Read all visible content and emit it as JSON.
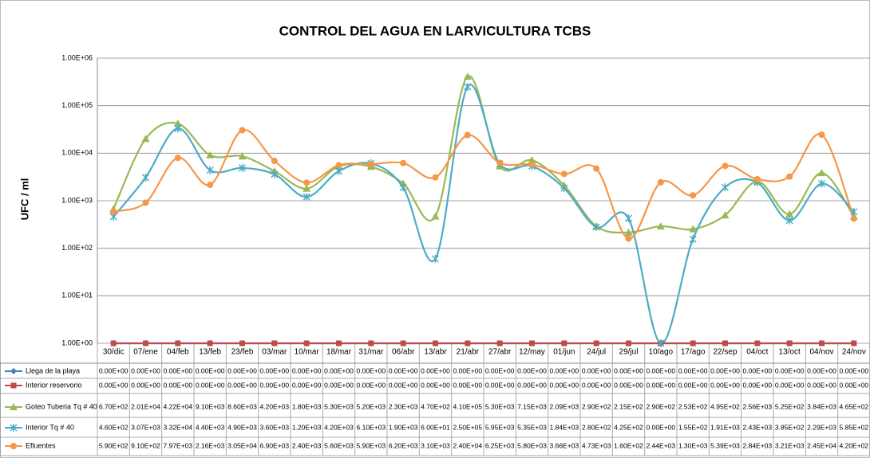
{
  "chart_data": {
    "type": "line",
    "title": "CONTROL DEL AGUA EN LARVICULTURA TCBS",
    "y_label": "UFC / ml",
    "log_scale": true,
    "grid": true,
    "legend": "table",
    "categories": [
      "30/dic",
      "07/ene",
      "04/feb",
      "13/feb",
      "23/feb",
      "03/mar",
      "10/mar",
      "18/mar",
      "31/mar",
      "06/abr",
      "13/abr",
      "21/abr",
      "27/abr",
      "12/may",
      "01/jun",
      "24/jul",
      "29/jul",
      "10/ago",
      "17/ago",
      "22/sep",
      "04/oct",
      "13/oct",
      "04/nov",
      "24/nov"
    ],
    "ylim": [
      1,
      1000000
    ],
    "yticks": [
      {
        "value": 1,
        "label": "1.00E+00"
      },
      {
        "value": 10,
        "label": "1.00E+01"
      },
      {
        "value": 100,
        "label": "1.00E+02"
      },
      {
        "value": 1000,
        "label": "1.00E+03"
      },
      {
        "value": 10000,
        "label": "1.00E+04"
      },
      {
        "value": 100000,
        "label": "1.00E+05"
      },
      {
        "value": 1000000,
        "label": "1.00E+06"
      }
    ],
    "series": [
      {
        "name": "Llega de la playa",
        "color": "#4a7ebb",
        "marker": "diamond",
        "values": [
          0,
          0,
          0,
          0,
          0,
          0,
          0,
          0,
          0,
          0,
          0,
          0,
          0,
          0,
          0,
          0,
          0,
          0,
          0,
          0,
          0,
          0,
          0,
          0
        ],
        "value_labels": [
          "0.00E+00",
          "0.00E+00",
          "0.00E+00",
          "0.00E+00",
          "0.00E+00",
          "0.00E+00",
          "0.00E+00",
          "0.00E+00",
          "0.00E+00",
          "0.00E+00",
          "0.00E+00",
          "0.00E+00",
          "0.00E+00",
          "0.00E+00",
          "0.00E+00",
          "0.00E+00",
          "0.00E+00",
          "0.00E+00",
          "0.00E+00",
          "0.00E+00",
          "0.00E+00",
          "0.00E+00",
          "0.00E+00",
          "0.00E+00"
        ]
      },
      {
        "name": "Interior reservorio",
        "color": "#be4b48",
        "marker": "square",
        "values": [
          0,
          0,
          0,
          0,
          0,
          0,
          0,
          0,
          0,
          0,
          0,
          0,
          0,
          0,
          0,
          0,
          0,
          0,
          0,
          0,
          0,
          0,
          0,
          0
        ],
        "value_labels": [
          "0.00E+00",
          "0.00E+00",
          "0.00E+00",
          "0.00E+00",
          "0.00E+00",
          "0.00E+00",
          "0.00E+00",
          "0.00E+00",
          "0.00E+00",
          "0.00E+00",
          "0.00E+00",
          "0.00E+00",
          "0.00E+00",
          "0.00E+00",
          "0.00E+00",
          "0.00E+00",
          "0.00E+00",
          "0.00E+00",
          "0.00E+00",
          "0.00E+00",
          "0.00E+00",
          "0.00E+00",
          "0.00E+00",
          "0.00E+00"
        ]
      },
      {
        "name": "Goteo Tuberia Tq # 40",
        "color": "#98b954",
        "marker": "triangle",
        "values": [
          670,
          20100,
          42200,
          9100,
          8600,
          4200,
          1800,
          5300,
          5200,
          2300,
          470,
          410000,
          5300,
          7150,
          2090,
          290,
          215,
          290,
          253,
          495,
          2560,
          525,
          3840,
          465
        ],
        "value_labels": [
          "6.70E+02",
          "2.01E+04",
          "4.22E+04",
          "9.10E+03",
          "8.60E+03",
          "4.20E+03",
          "1.80E+03",
          "5.30E+03",
          "5.20E+03",
          "2.30E+03",
          "4.70E+02",
          "4.10E+05",
          "5.30E+03",
          "7.15E+03",
          "2.09E+03",
          "2.90E+02",
          "2.15E+02",
          "2.90E+02",
          "2.53E+02",
          "4.95E+02",
          "2.56E+03",
          "5.25E+02",
          "3.84E+03",
          "4.65E+02"
        ]
      },
      {
        "name": "Interior Tq # 40",
        "color": "#4bacc6",
        "marker": "star",
        "values": [
          460,
          3070,
          33200,
          4400,
          4900,
          3600,
          1200,
          4200,
          6100,
          1900,
          60,
          250000,
          5950,
          5350,
          1840,
          280,
          425,
          0,
          155,
          1910,
          2430,
          385,
          2290,
          585
        ],
        "value_labels": [
          "4.60E+02",
          "3.07E+03",
          "3.32E+04",
          "4.40E+03",
          "4.90E+03",
          "3.60E+03",
          "1.20E+03",
          "4.20E+03",
          "6.10E+03",
          "1.90E+03",
          "6.00E+01",
          "2.50E+05",
          "5.95E+03",
          "5.35E+03",
          "1.84E+03",
          "2.80E+02",
          "4.25E+02",
          "0.00E+00",
          "1.55E+02",
          "1.91E+03",
          "2.43E+03",
          "3.85E+02",
          "2.29E+03",
          "5.85E+02"
        ]
      },
      {
        "name": "Efluentes",
        "color": "#f79646",
        "marker": "circle",
        "values": [
          590,
          910,
          7970,
          2160,
          30500,
          6900,
          2400,
          5600,
          5900,
          6200,
          3100,
          24000,
          6250,
          5800,
          3660,
          4730,
          160,
          2440,
          1300,
          5390,
          2840,
          3210,
          24500,
          420
        ],
        "value_labels": [
          "5.90E+02",
          "9.10E+02",
          "7.97E+03",
          "2.16E+03",
          "3.05E+04",
          "6.90E+03",
          "2.40E+03",
          "5.60E+03",
          "5.90E+03",
          "6.20E+03",
          "3.10E+03",
          "2.40E+04",
          "6.25E+03",
          "5.80E+03",
          "3.66E+03",
          "4.73E+03",
          "1.60E+02",
          "2.44E+03",
          "1.30E+03",
          "5.39E+03",
          "2.84E+03",
          "3.21E+03",
          "2.45E+04",
          "4.20E+02"
        ]
      }
    ]
  }
}
